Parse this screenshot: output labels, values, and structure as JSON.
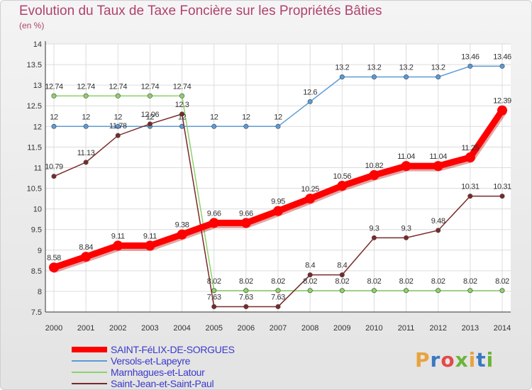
{
  "title": "Evolution du Taux de Taxe Foncière sur les Propriétés Bâties",
  "subtitle": "(en %)",
  "logo_text": "Proxiti",
  "chart_data": {
    "type": "line",
    "x": [
      2000,
      2001,
      2002,
      2003,
      2004,
      2005,
      2006,
      2007,
      2008,
      2009,
      2010,
      2011,
      2012,
      2013,
      2014
    ],
    "ylim": [
      7.5,
      14
    ],
    "yticks": [
      7.5,
      8,
      8.5,
      9,
      9.5,
      10,
      10.5,
      11,
      11.5,
      12,
      12.5,
      13,
      13.5,
      14
    ],
    "grid": true,
    "legend_position": "bottom-left",
    "series": [
      {
        "name": "SAINT-FéLIX-DE-SORGUES",
        "color": "#ff0000",
        "values": [
          8.58,
          8.84,
          9.11,
          9.11,
          9.38,
          9.66,
          9.66,
          9.95,
          10.25,
          10.56,
          10.82,
          11.04,
          11.04,
          11.25,
          12.39
        ],
        "labels": [
          "8.58",
          "8.84",
          "9.11",
          "9.11",
          "9.38",
          "9.66",
          "9.66",
          "9.95",
          "10.25",
          "10.56",
          "10.82",
          "11.04",
          "11.04",
          "11.25",
          "12.39"
        ]
      },
      {
        "name": "Versols-et-Lapeyre",
        "color": "#5b9bd5",
        "values": [
          12,
          12,
          12,
          12,
          12,
          12,
          12,
          12,
          12.6,
          13.2,
          13.2,
          13.2,
          13.2,
          13.46,
          13.46
        ],
        "labels": [
          "12",
          "12",
          "12",
          "12",
          "12",
          "12",
          "12",
          "12",
          "12.6",
          "13.2",
          "13.2",
          "13.2",
          "13.2",
          "13.46",
          "13.46"
        ]
      },
      {
        "name": "Marnhagues-et-Latour",
        "color": "#8fd16a",
        "values": [
          12.74,
          12.74,
          12.74,
          12.74,
          12.74,
          8.02,
          8.02,
          8.02,
          8.02,
          8.02,
          8.02,
          8.02,
          8.02,
          8.02,
          8.02
        ],
        "labels": [
          "12.74",
          "12.74",
          "12.74",
          "12.74",
          "12.74",
          "8.02",
          "8.02",
          "8.02",
          "8.02",
          "8.02",
          "8.02",
          "8.02",
          "8.02",
          "8.02",
          "8.02"
        ]
      },
      {
        "name": "Saint-Jean-et-Saint-Paul",
        "color": "#7a2a2a",
        "values": [
          10.79,
          11.13,
          11.78,
          12.06,
          12.3,
          7.63,
          7.63,
          7.63,
          8.4,
          8.4,
          9.3,
          9.3,
          9.48,
          10.31,
          10.31
        ],
        "labels": [
          "10.79",
          "11.13",
          "11.78",
          "12.06",
          "12.3",
          "7.63",
          "7.63",
          "7.63",
          "8.4",
          "8.4",
          "9.3",
          "9.3",
          "9.48",
          "10.31",
          "10.31"
        ]
      }
    ]
  }
}
